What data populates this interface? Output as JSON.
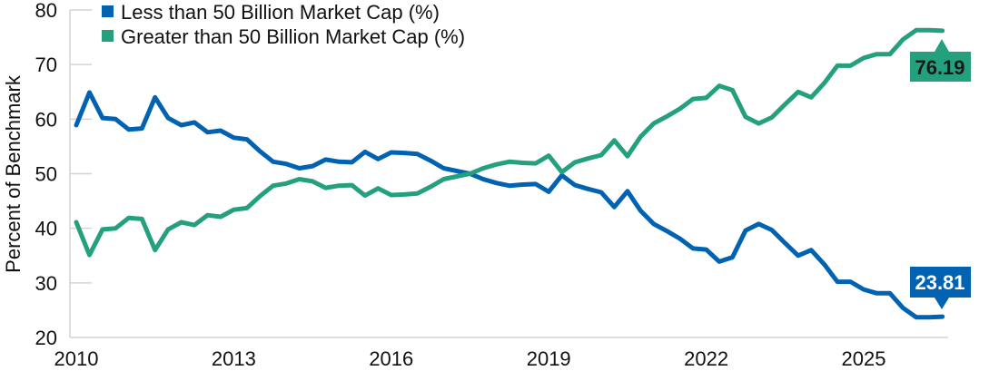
{
  "chart_data": {
    "type": "line",
    "title": "",
    "xlabel": "",
    "ylabel": "Percent of Benchmark",
    "ylim": [
      20,
      80
    ],
    "yticks": [
      "20",
      "30",
      "40",
      "50",
      "60",
      "70",
      "80"
    ],
    "xticks": [
      "2010",
      "2013",
      "2016",
      "2019",
      "2022",
      "2025"
    ],
    "x_frequency": "quarterly",
    "x_start": 2010,
    "grid": false,
    "legend_position": "top-left",
    "series": [
      {
        "name": "Less than 50 Billion Market Cap (%)",
        "color": "#0062b1",
        "values": [
          58.9,
          64.9,
          60.2,
          60.0,
          58.1,
          58.3,
          64.0,
          60.2,
          58.9,
          59.4,
          57.6,
          57.9,
          56.6,
          56.3,
          54.1,
          52.2,
          51.8,
          51.0,
          51.4,
          52.6,
          52.2,
          52.1,
          54.0,
          52.7,
          53.9,
          53.8,
          53.6,
          52.4,
          51.0,
          50.5,
          50.0,
          49.0,
          48.3,
          47.8,
          48.0,
          48.1,
          46.7,
          49.7,
          47.9,
          47.2,
          46.6,
          43.9,
          46.8,
          43.2,
          40.8,
          39.5,
          38.1,
          36.3,
          36.1,
          33.9,
          34.7,
          39.6,
          40.8,
          39.7,
          37.3,
          35.0,
          36.0,
          33.4,
          30.2,
          30.2,
          28.8,
          28.1,
          28.1,
          25.4,
          23.7,
          23.7,
          23.81
        ],
        "end_label": "23.81"
      },
      {
        "name": "Greater than 50 Billion Market Cap (%)",
        "color": "#25a07f",
        "values": [
          41.1,
          35.1,
          39.8,
          40.0,
          41.9,
          41.7,
          36.0,
          39.8,
          41.1,
          40.6,
          42.4,
          42.1,
          43.4,
          43.7,
          45.9,
          47.8,
          48.2,
          49.0,
          48.6,
          47.4,
          47.8,
          47.9,
          46.0,
          47.3,
          46.1,
          46.2,
          46.4,
          47.6,
          49.0,
          49.5,
          50.0,
          51.0,
          51.7,
          52.2,
          52.0,
          51.9,
          53.3,
          50.3,
          52.1,
          52.8,
          53.4,
          56.1,
          53.2,
          56.8,
          59.2,
          60.5,
          61.9,
          63.7,
          63.9,
          66.1,
          65.3,
          60.4,
          59.2,
          60.3,
          62.7,
          65.0,
          64.0,
          66.6,
          69.8,
          69.8,
          71.2,
          71.9,
          71.9,
          74.6,
          76.3,
          76.3,
          76.19
        ],
        "end_label": "76.19"
      }
    ]
  }
}
